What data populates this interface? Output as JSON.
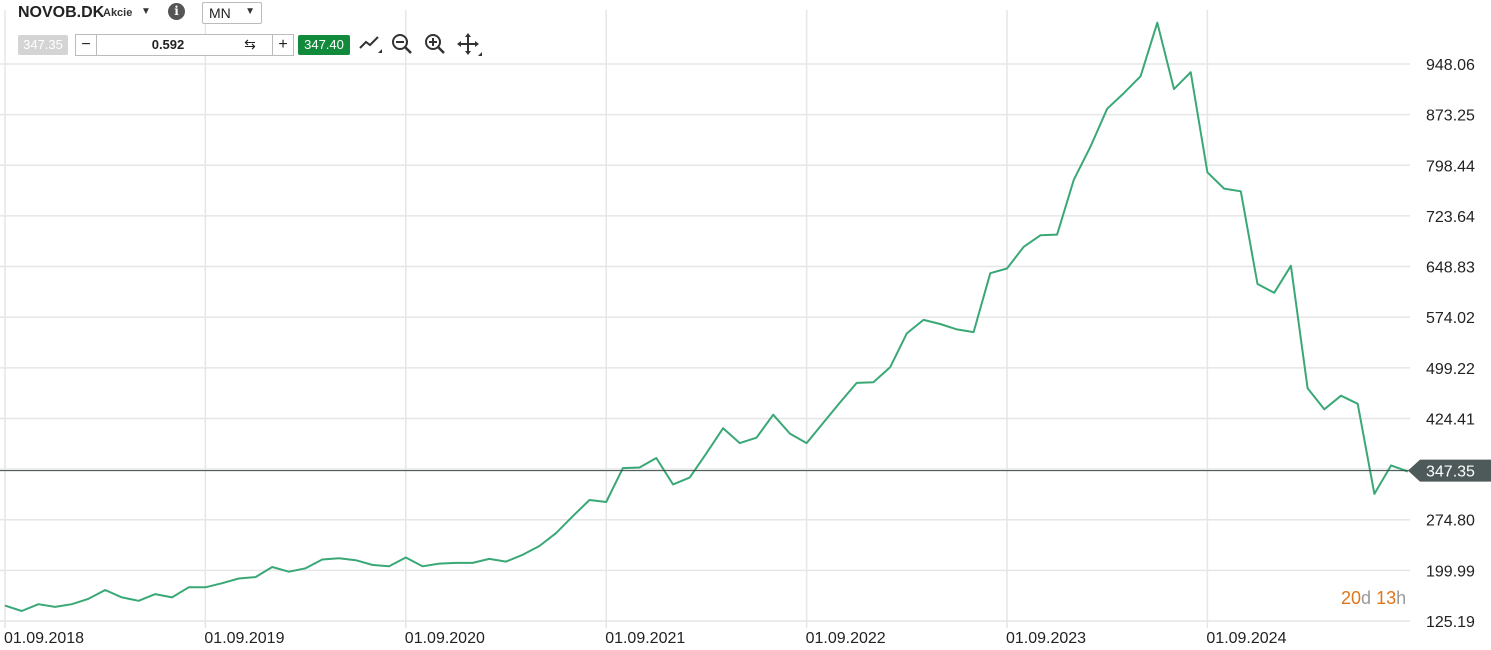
{
  "toolbar": {
    "symbol": "NOVOB.DK",
    "symbol_type": "Akcie",
    "interval": "MN",
    "bid": "347.35",
    "quantity": "0.592",
    "ask": "347.40",
    "icons": [
      "caret-down-icon",
      "info-icon",
      "line-chart-icon",
      "zoom-out-icon",
      "zoom-in-icon",
      "move-icon",
      "swap-icon"
    ]
  },
  "timer": {
    "days": "20",
    "days_unit": "d",
    "hours": "13",
    "hours_unit": "h"
  },
  "colors": {
    "series": "#3aa876",
    "grid": "#e6e6e6",
    "price_line": "#3a4a4a",
    "price_tag": "#4e5a5a",
    "ask": "#128a3c",
    "timer": "#e0761a"
  },
  "chart_data": {
    "type": "line",
    "current_price": 347.35,
    "current_price_label": "347.35",
    "y_tick_labels": [
      "948.06",
      "873.25",
      "798.44",
      "723.64",
      "648.83",
      "574.02",
      "499.22",
      "424.41",
      "347.35",
      "274.80",
      "199.99",
      "125.19"
    ],
    "y_ticks": [
      948.06,
      873.25,
      798.44,
      723.64,
      648.83,
      574.02,
      499.22,
      424.41,
      349.61,
      274.8,
      199.99,
      125.19
    ],
    "x_tick_labels": [
      "01.09.2018",
      "01.09.2019",
      "01.09.2020",
      "01.09.2021",
      "01.09.2022",
      "01.09.2023",
      "01.09.2024"
    ],
    "grid": true,
    "series": [
      {
        "values": [
          148,
          140,
          150,
          146,
          150,
          158,
          171,
          160,
          155,
          165,
          160,
          175,
          175,
          181,
          188,
          190,
          205,
          198,
          203,
          216,
          218,
          215,
          208,
          206,
          219,
          206,
          210,
          211,
          211,
          217,
          213,
          223,
          236,
          255,
          280,
          304,
          301,
          351,
          352,
          366,
          327,
          337,
          373,
          410,
          388,
          396,
          430,
          402,
          388,
          418,
          448,
          477,
          478,
          500,
          550,
          570,
          564,
          556,
          552,
          639,
          646,
          678,
          695,
          696,
          777,
          826,
          882,
          905,
          930,
          1009,
          911,
          936,
          788,
          764,
          760,
          623,
          610,
          650,
          469,
          438,
          458,
          446,
          313,
          355,
          346
        ]
      }
    ]
  }
}
